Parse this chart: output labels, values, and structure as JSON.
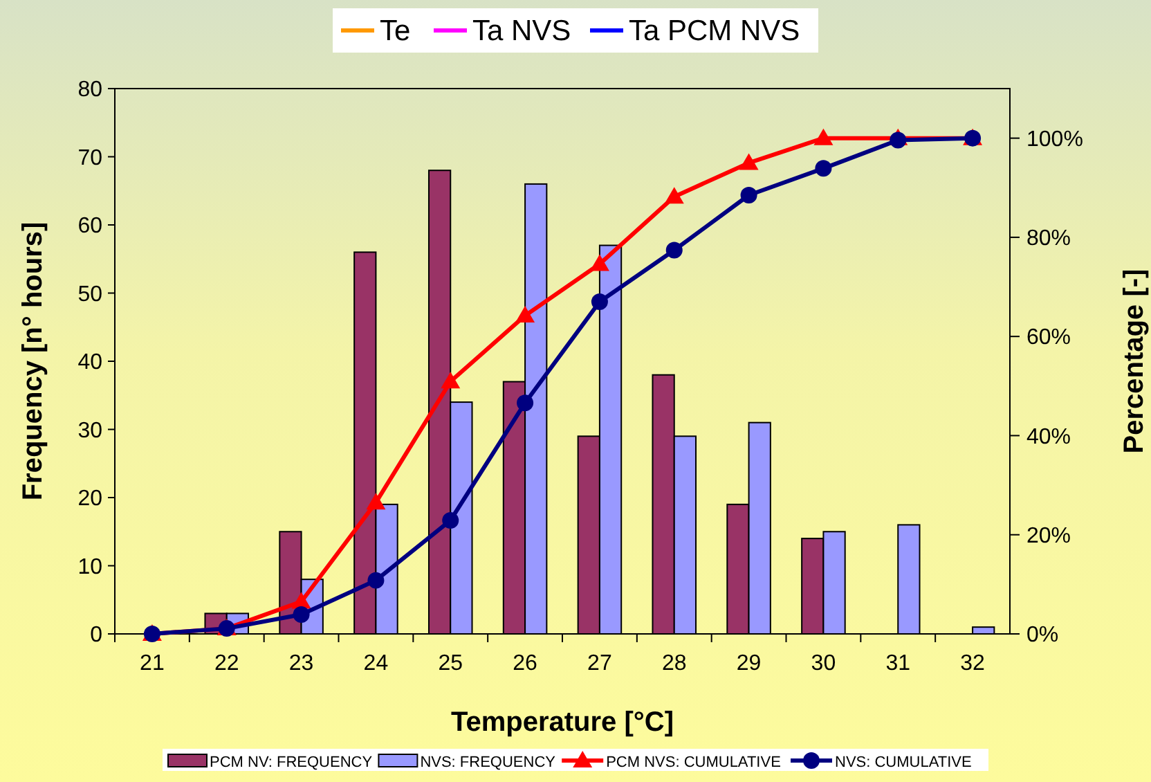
{
  "chart_data": {
    "type": "bar",
    "xlabel": "Temperature [°C]",
    "ylabel": "Frequency [n° hours]",
    "y2label": "Percentage [-]",
    "categories": [
      "21",
      "22",
      "23",
      "24",
      "25",
      "26",
      "27",
      "28",
      "29",
      "30",
      "31",
      "32"
    ],
    "series": [
      {
        "name": "PCM NV: FREQUENCY",
        "color": "#993366",
        "values": [
          0,
          3,
          15,
          56,
          68,
          37,
          29,
          38,
          19,
          14,
          0,
          0
        ]
      },
      {
        "name": "NVS: FREQUENCY",
        "color": "#9999ff",
        "values": [
          0,
          3,
          8,
          19,
          34,
          66,
          57,
          29,
          31,
          15,
          16,
          1
        ]
      },
      {
        "name": "PCM NVS: CUMULATIVE",
        "type": "line",
        "axis": "y2",
        "color": "#ff0000",
        "marker": "triangle",
        "values": [
          0,
          1.1,
          6.5,
          26.5,
          50.9,
          64.2,
          74.6,
          88.2,
          95.0,
          100,
          100,
          100
        ]
      },
      {
        "name": "NVS: CUMULATIVE",
        "type": "line",
        "axis": "y2",
        "color": "#000080",
        "marker": "circle",
        "values": [
          0,
          1.1,
          3.9,
          10.8,
          22.9,
          46.6,
          67.0,
          77.4,
          88.5,
          93.9,
          99.6,
          100
        ]
      },
      {
        "name": "Te",
        "type": "line",
        "color": "#ff9900",
        "values": [
          null,
          null,
          null,
          null,
          null,
          null,
          null,
          null,
          null,
          null,
          null,
          null
        ]
      },
      {
        "name": "Ta NVS",
        "type": "line",
        "color": "#ff00ff",
        "values": [
          null,
          null,
          null,
          null,
          null,
          null,
          null,
          null,
          null,
          null,
          null,
          null
        ]
      },
      {
        "name": "Ta PCM NVS",
        "type": "line",
        "color": "#0000ff",
        "values": [
          null,
          null,
          null,
          null,
          null,
          null,
          null,
          null,
          null,
          null,
          null,
          null
        ]
      }
    ],
    "ylim": [
      0,
      80
    ],
    "yticks": [
      0,
      10,
      20,
      30,
      40,
      50,
      60,
      70,
      80
    ],
    "y2lim": [
      0,
      110
    ],
    "y2ticks": [
      {
        "value": 0,
        "label": "0%"
      },
      {
        "value": 20,
        "label": "20%"
      },
      {
        "value": 40,
        "label": "40%"
      },
      {
        "value": 60,
        "label": "60%"
      },
      {
        "value": 80,
        "label": "80%"
      },
      {
        "value": 100,
        "label": "100%"
      }
    ],
    "grid": false,
    "legend": "bottom"
  }
}
